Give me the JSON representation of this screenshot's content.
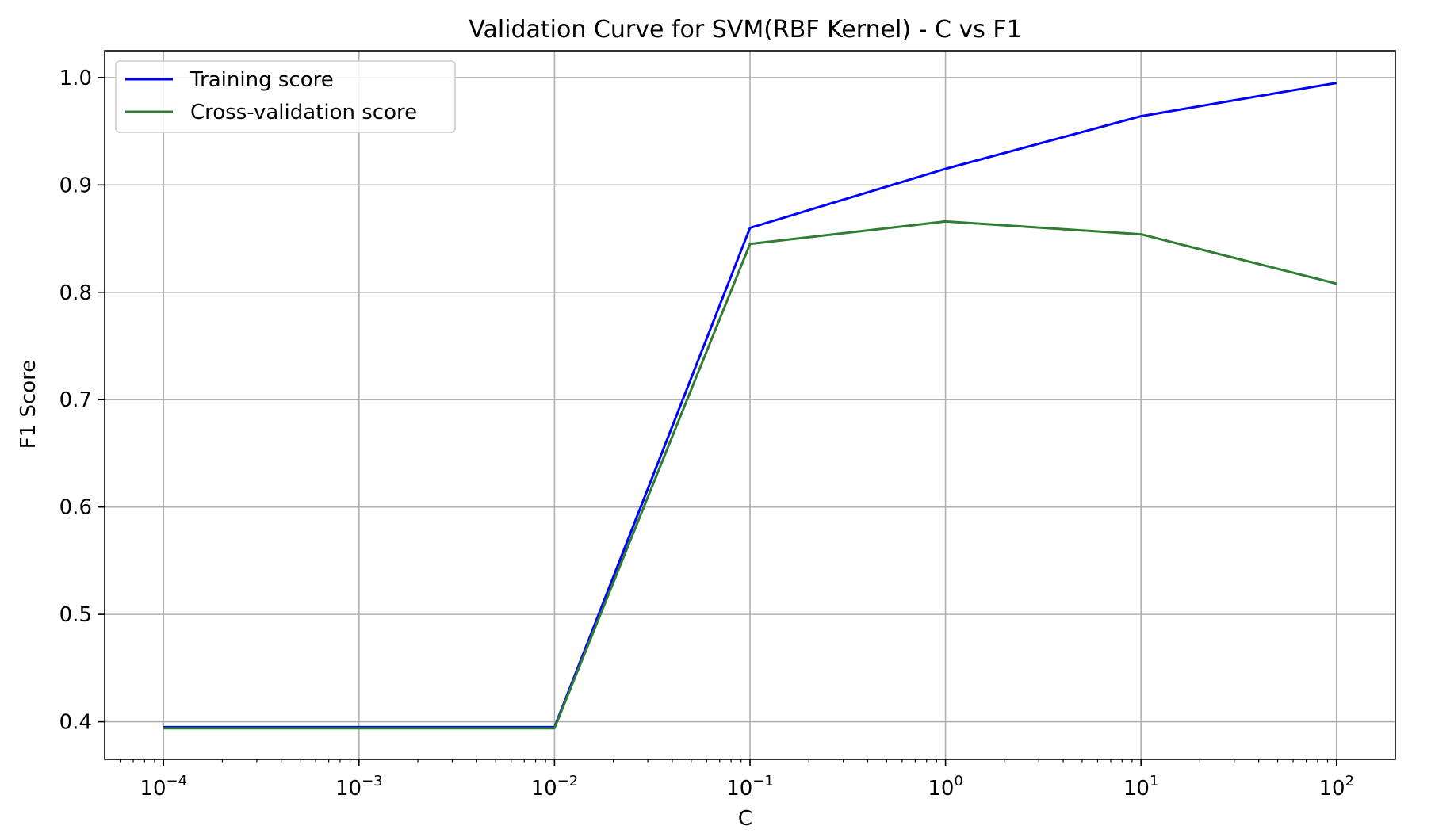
{
  "chart_data": {
    "type": "line",
    "title": "Validation Curve for SVM(RBF Kernel) - C vs F1",
    "xlabel": "C",
    "ylabel": "F1 Score",
    "x_scale": "log",
    "x": [
      0.0001,
      0.001,
      0.01,
      0.1,
      1,
      10,
      100
    ],
    "xlim": [
      5e-05,
      200
    ],
    "ylim": [
      0.365,
      1.025
    ],
    "x_ticks": [
      {
        "value": 0.0001,
        "base": "10",
        "exp": "−4"
      },
      {
        "value": 0.001,
        "base": "10",
        "exp": "−3"
      },
      {
        "value": 0.01,
        "base": "10",
        "exp": "−2"
      },
      {
        "value": 0.1,
        "base": "10",
        "exp": "−1"
      },
      {
        "value": 1,
        "base": "10",
        "exp": "0"
      },
      {
        "value": 10,
        "base": "10",
        "exp": "1"
      },
      {
        "value": 100,
        "base": "10",
        "exp": "2"
      }
    ],
    "y_ticks": [
      {
        "value": 0.4,
        "label": "0.4"
      },
      {
        "value": 0.5,
        "label": "0.5"
      },
      {
        "value": 0.6,
        "label": "0.6"
      },
      {
        "value": 0.7,
        "label": "0.7"
      },
      {
        "value": 0.8,
        "label": "0.8"
      },
      {
        "value": 0.9,
        "label": "0.9"
      },
      {
        "value": 1.0,
        "label": "1.0"
      }
    ],
    "grid": true,
    "legend_position": "top-left",
    "series": [
      {
        "name": "Training score",
        "color": "#0000ff",
        "values": [
          0.395,
          0.395,
          0.395,
          0.86,
          0.915,
          0.964,
          0.995
        ]
      },
      {
        "name": "Cross-validation score",
        "color": "#2e7d32",
        "values": [
          0.394,
          0.394,
          0.394,
          0.845,
          0.866,
          0.854,
          0.808
        ]
      }
    ]
  }
}
